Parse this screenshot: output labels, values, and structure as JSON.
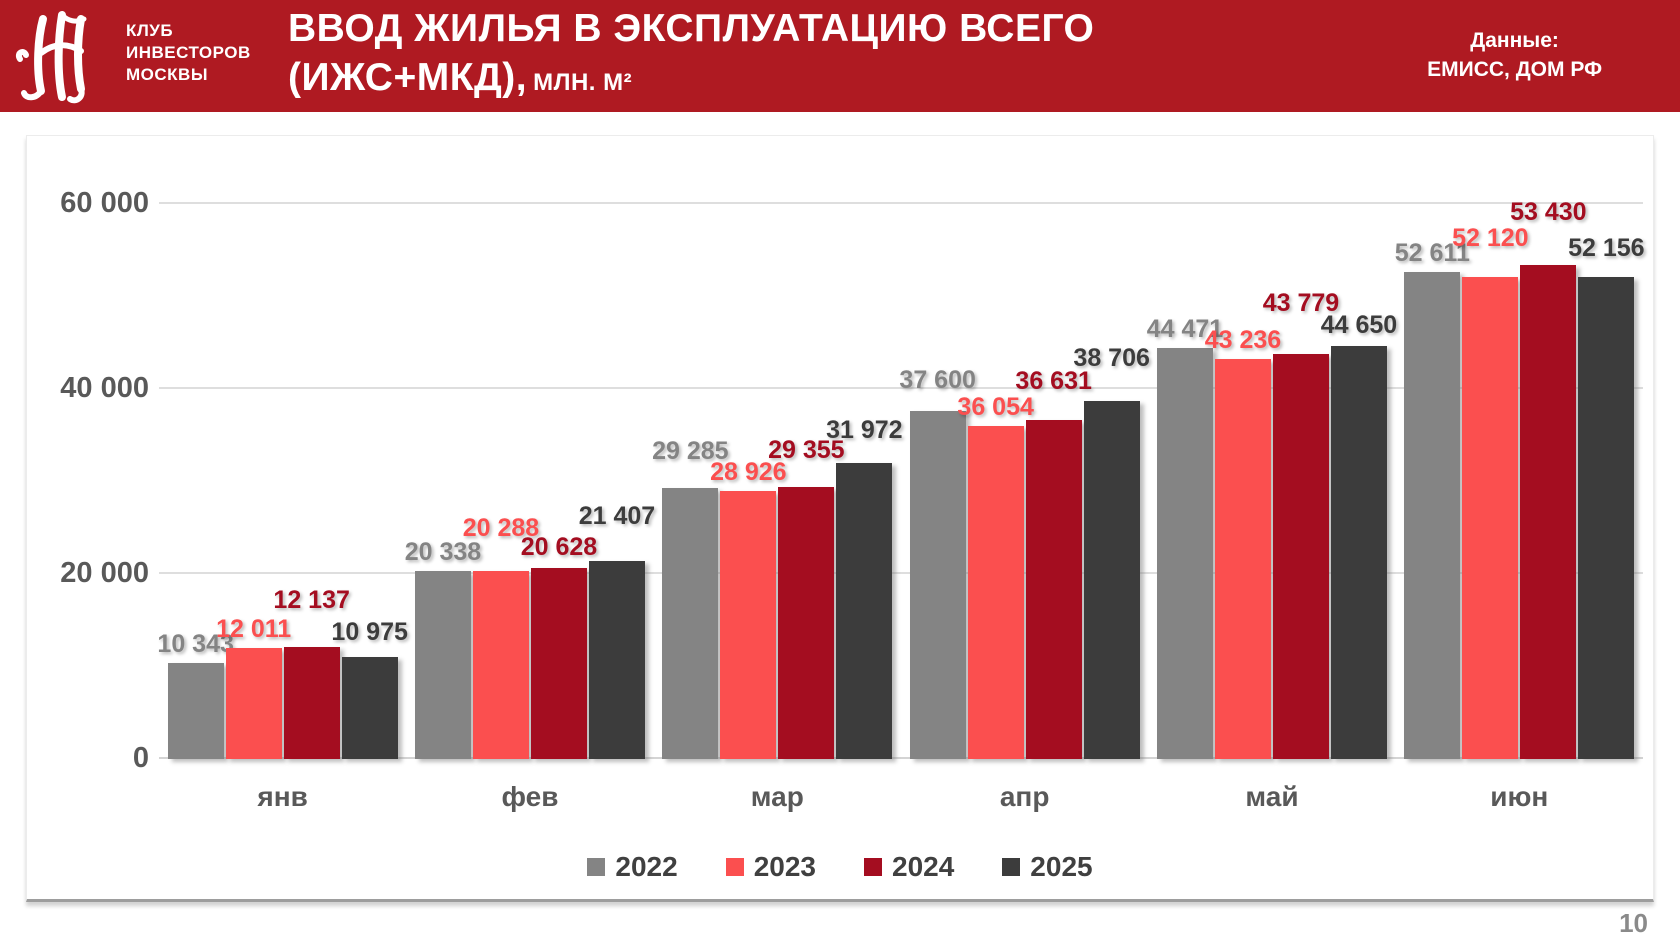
{
  "header": {
    "bg_color": "#AF1A22",
    "logo_org_line1": "КЛУБ",
    "logo_org_line2": "ИНВЕСТОРОВ",
    "logo_org_line3": "МОСКВЫ",
    "title_line1": "ВВОД ЖИЛЬЯ В ЭКСПЛУАТАЦИЮ ВСЕГО",
    "title_line2": "(ИЖС+МКД),",
    "title_units": "МЛН. М²",
    "source_line1": "Данные:",
    "source_line2": "ЕМИСС, ДОМ РФ"
  },
  "chart_data": {
    "type": "bar",
    "title": "ВВОД ЖИЛЬЯ В ЭКСПЛУАТАЦИЮ ВСЕГО (ИЖС+МКД), млн. м²",
    "categories": [
      "янв",
      "фев",
      "мар",
      "апр",
      "май",
      "июн"
    ],
    "series": [
      {
        "name": "2022",
        "color": "#848484",
        "values": [
          10343,
          20338,
          29285,
          37600,
          44471,
          52611
        ]
      },
      {
        "name": "2023",
        "color": "#FB4F4F",
        "values": [
          12011,
          20288,
          28926,
          36054,
          43236,
          52120
        ]
      },
      {
        "name": "2024",
        "color": "#A40D20",
        "values": [
          12137,
          20628,
          29355,
          36631,
          43779,
          53430
        ]
      },
      {
        "name": "2025",
        "color": "#3C3C3C",
        "values": [
          10975,
          21407,
          31972,
          38706,
          44650,
          52156
        ]
      }
    ],
    "y_ticks": [
      "60 000",
      "40 000",
      "20 000",
      "0"
    ],
    "ylim": [
      0,
      65000
    ],
    "grid": true,
    "legend_position": "bottom",
    "gridline_color": "#dedede"
  },
  "footer": {
    "page_number": "10"
  }
}
